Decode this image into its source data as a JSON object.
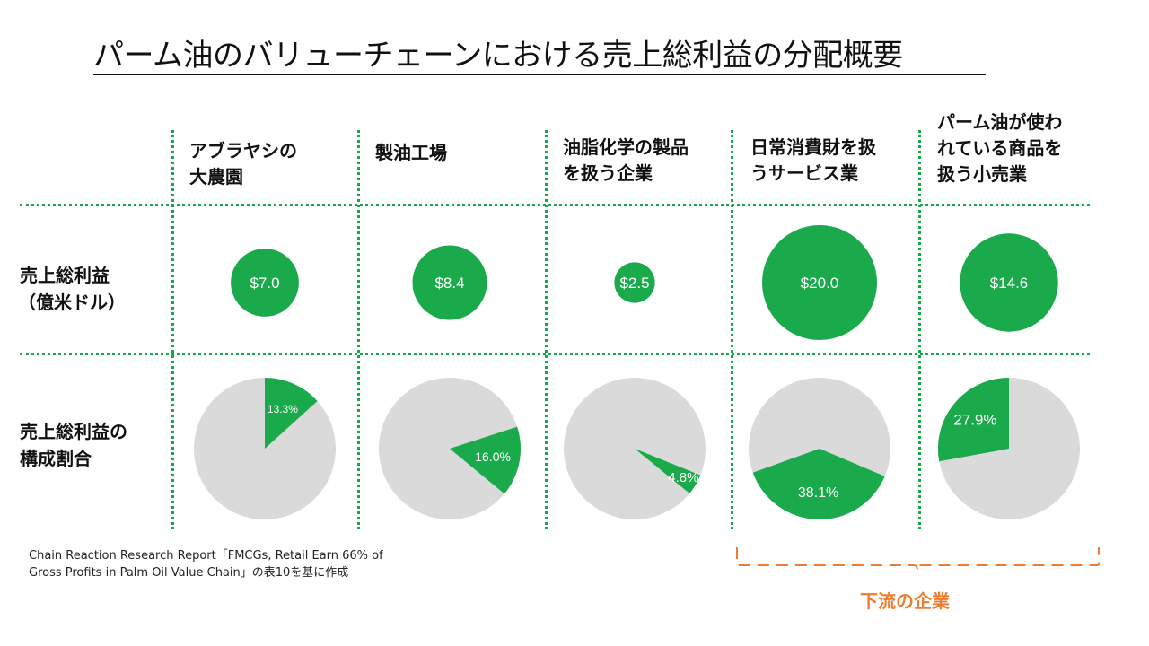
{
  "title": "パーム油のバリューチェーンにおける売上総利益の分配概要",
  "row_labels": {
    "gross_profit_line1": "売上総利益",
    "gross_profit_line2": "（億米ドル）",
    "share_line1": "売上総利益の",
    "share_line2": "構成割合"
  },
  "columns": [
    {
      "header_line1": "アブラヤシの",
      "header_line2": "大農園",
      "header_line3": ""
    },
    {
      "header_line1": "製油工場",
      "header_line2": "",
      "header_line3": ""
    },
    {
      "header_line1": "油脂化学の製品",
      "header_line2": "を扱う企業",
      "header_line3": ""
    },
    {
      "header_line1": "日常消費財を扱",
      "header_line2": "うサービス業",
      "header_line3": ""
    },
    {
      "header_line1": "パーム油が使わ",
      "header_line2": "れている商品を",
      "header_line3": "扱う小売業"
    }
  ],
  "chart_data": {
    "type": "pie",
    "categories": [
      "アブラヤシの大農園",
      "製油工場",
      "油脂化学の製品を扱う企業",
      "日常消費財を扱うサービス業",
      "パーム油が使われている商品を扱う小売業"
    ],
    "series": [
      {
        "values": [
          7.0,
          8.4,
          2.5,
          20.0,
          14.6
        ],
        "labels": [
          "$7.0",
          "$8.4",
          "$2.5",
          "$20.0",
          "$14.6"
        ]
      },
      {
        "values": [
          13.3,
          16.0,
          4.8,
          38.1,
          27.9
        ],
        "labels": [
          "13.3%",
          "16.0%",
          "4.8%",
          "38.1%",
          "27.9%"
        ]
      }
    ],
    "colors": {
      "accent": "#1aaa4b",
      "rest": "#dadada",
      "text": "#ffffff"
    }
  },
  "source_line1": "Chain Reaction Research Report「FMCGs, Retail Earn 66% of",
  "source_line2": "Gross Profits in Palm Oil Value Chain」の表10を基に作成",
  "downstream_label": "下流の企業",
  "colors": {
    "grid": "#16a84b",
    "brace": "#ed7d31"
  }
}
